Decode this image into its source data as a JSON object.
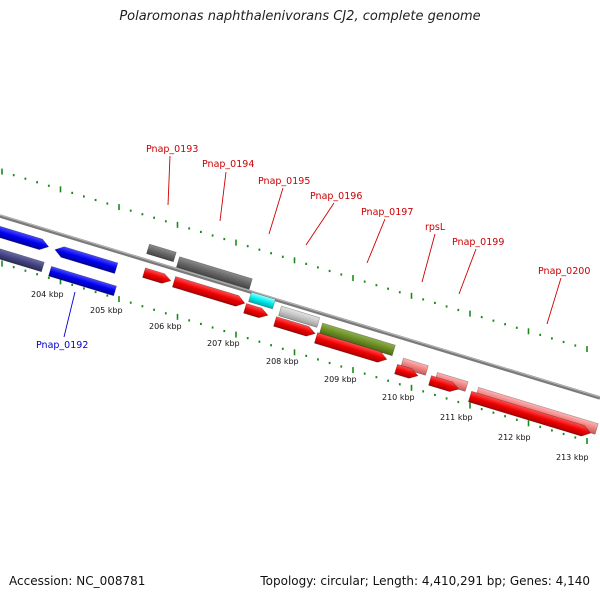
{
  "title": "Polaromonas naphthalenivorans CJ2, complete genome",
  "footer": {
    "accession": "Accession: NC_008781",
    "topology": "Topology: circular; Length: 4,410,291 bp; Genes: 4,140"
  },
  "colors": {
    "label_red": "#cc0000",
    "label_blue": "#0000cc",
    "tick_green": "#1a8a1a",
    "backbone": "#888888"
  },
  "kbp_labels": [
    "204 kbp",
    "205 kbp",
    "206 kbp",
    "207 kbp",
    "208 kbp",
    "209 kbp",
    "210 kbp",
    "211 kbp",
    "212 kbp",
    "213 kbp"
  ],
  "gene_labels": [
    {
      "text": "Pnap_0192",
      "color": "#0000cc"
    },
    {
      "text": "Pnap_0193",
      "color": "#cc0000"
    },
    {
      "text": "Pnap_0194",
      "color": "#cc0000"
    },
    {
      "text": "Pnap_0195",
      "color": "#cc0000"
    },
    {
      "text": "Pnap_0196",
      "color": "#cc0000"
    },
    {
      "text": "Pnap_0197",
      "color": "#cc0000"
    },
    {
      "text": "rpsL",
      "color": "#cc0000"
    },
    {
      "text": "Pnap_0199",
      "color": "#cc0000"
    },
    {
      "text": "Pnap_0200",
      "color": "#cc0000"
    }
  ]
}
